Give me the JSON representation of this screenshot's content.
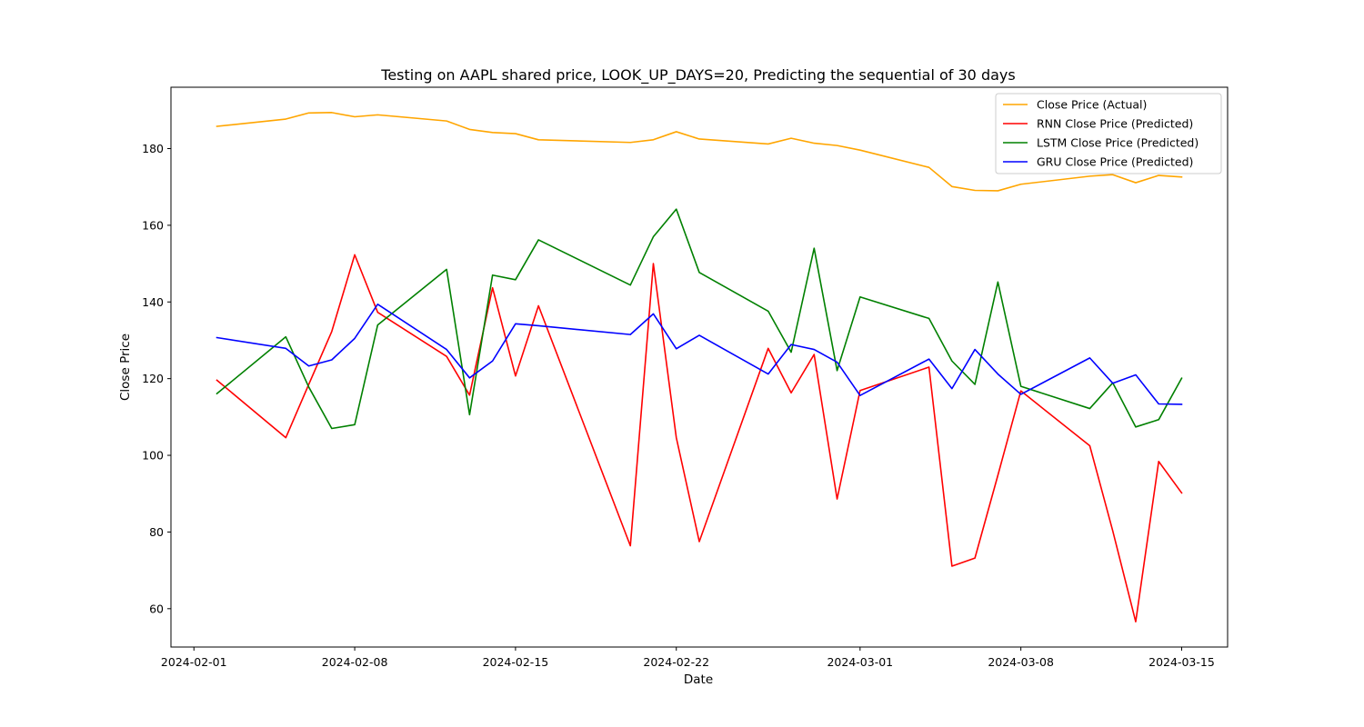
{
  "chart_data": {
    "type": "line",
    "title": "Testing on AAPL shared price, LOOK_UP_DAYS=20, Predicting the sequential of 30 days",
    "xlabel": "Date",
    "ylabel": "Close Price",
    "xlim": [
      "2024-01-31",
      "2024-03-17"
    ],
    "ylim": [
      50,
      196
    ],
    "x_ticks": [
      "2024-02-01",
      "2024-02-08",
      "2024-02-15",
      "2024-02-22",
      "2024-03-01",
      "2024-03-08",
      "2024-03-15"
    ],
    "y_ticks": [
      60,
      80,
      100,
      120,
      140,
      160,
      180
    ],
    "grid": false,
    "legend_position": "top-right",
    "x": [
      "2024-02-02",
      "2024-02-05",
      "2024-02-06",
      "2024-02-07",
      "2024-02-08",
      "2024-02-09",
      "2024-02-12",
      "2024-02-13",
      "2024-02-14",
      "2024-02-15",
      "2024-02-16",
      "2024-02-20",
      "2024-02-21",
      "2024-02-22",
      "2024-02-23",
      "2024-02-26",
      "2024-02-27",
      "2024-02-28",
      "2024-02-29",
      "2024-03-01",
      "2024-03-04",
      "2024-03-05",
      "2024-03-06",
      "2024-03-07",
      "2024-03-08",
      "2024-03-11",
      "2024-03-12",
      "2024-03-13",
      "2024-03-14",
      "2024-03-15"
    ],
    "series": [
      {
        "name": "Close Price (Actual)",
        "color": "#ffa500",
        "values": [
          185.8,
          187.7,
          189.3,
          189.4,
          188.3,
          188.8,
          187.2,
          185.0,
          184.2,
          183.9,
          182.3,
          181.6,
          182.3,
          184.4,
          182.5,
          181.2,
          182.7,
          181.4,
          180.8,
          179.6,
          175.1,
          170.1,
          169.1,
          169.0,
          170.7,
          172.8,
          173.2,
          171.1,
          173.0,
          172.6
        ]
      },
      {
        "name": "RNN Close Price (Predicted)",
        "color": "#ff0000",
        "values": [
          119.6,
          104.6,
          118.5,
          132.3,
          152.3,
          137.3,
          125.8,
          115.7,
          143.7,
          120.7,
          139.0,
          76.4,
          150.0,
          104.6,
          77.5,
          127.9,
          116.3,
          126.3,
          88.6,
          116.9,
          123.0,
          71.1,
          73.2,
          94.8,
          116.8,
          102.5,
          80.3,
          56.6,
          98.4,
          90.2
        ]
      },
      {
        "name": "LSTM Close Price (Predicted)",
        "color": "#008000",
        "values": [
          116.1,
          130.9,
          117.8,
          107.0,
          108.0,
          134.0,
          148.5,
          110.6,
          147.0,
          145.8,
          156.2,
          144.4,
          157.0,
          164.2,
          147.7,
          137.6,
          126.9,
          154.0,
          122.1,
          141.3,
          135.7,
          124.6,
          118.5,
          145.2,
          118.0,
          112.2,
          118.9,
          107.4,
          109.3,
          120.1
        ]
      },
      {
        "name": "GRU Close Price (Predicted)",
        "color": "#0000ff",
        "values": [
          130.7,
          127.9,
          123.3,
          124.9,
          130.5,
          139.4,
          127.6,
          120.2,
          124.6,
          134.3,
          133.8,
          131.5,
          136.9,
          127.8,
          131.3,
          121.2,
          128.9,
          127.6,
          124.3,
          115.6,
          125.1,
          117.4,
          127.6,
          121.2,
          115.9,
          125.4,
          118.8,
          121.0,
          113.4,
          113.3
        ]
      }
    ]
  }
}
